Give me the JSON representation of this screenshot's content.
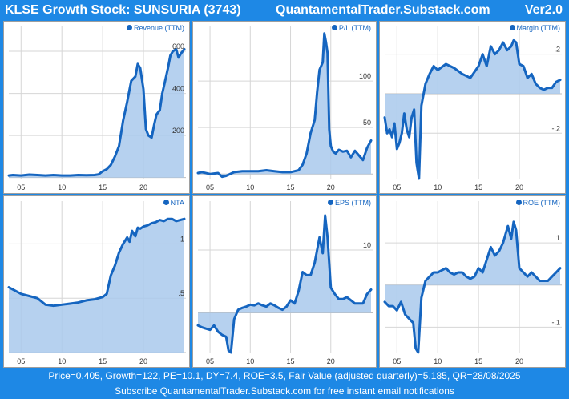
{
  "header": {
    "title": "KLSE Growth Stock: SUNSURIA (3743)",
    "site": "QuantamentalTrader.Substack.com",
    "version": "Ver2.0"
  },
  "footer": {
    "line1": "Price=0.405, Growth=122, PE=10.1, DY=7.4, ROE=3.5, Fair Value (adjusted quarterly)=5.185, QR=28/08/2025",
    "line2": "Subscribe QuantamentalTrader.Substack.com for free instant email notifications"
  },
  "colors": {
    "header_bg": "#1e88e5",
    "line": "#1565c0",
    "fill": "#a9c9ec"
  },
  "chart_data": [
    {
      "type": "area",
      "legend": "Revenue (TTM)",
      "xlim": [
        2003.5,
        2025.2
      ],
      "x_ticks": [
        "05",
        "10",
        "15",
        "20"
      ],
      "x_tick_values": [
        2005,
        2010,
        2015,
        2020
      ],
      "ylim": [
        -5,
        680
      ],
      "y_ticks": [
        200,
        400,
        600
      ],
      "y_tick_labels": [
        "200",
        "400",
        "600"
      ],
      "baseline": 0,
      "x": [
        2003.5,
        2004,
        2005,
        2006,
        2007,
        2008,
        2009,
        2010,
        2011,
        2012,
        2013,
        2014,
        2014.5,
        2015,
        2015.5,
        2016,
        2016.5,
        2017,
        2017.5,
        2018,
        2018.5,
        2019,
        2019.3,
        2019.6,
        2020,
        2020.3,
        2020.6,
        2021,
        2021.3,
        2021.6,
        2022,
        2022.3,
        2022.6,
        2023,
        2023.3,
        2023.6,
        2024,
        2024.3,
        2024.6,
        2025
      ],
      "y": [
        10,
        12,
        10,
        14,
        12,
        10,
        12,
        10,
        10,
        12,
        11,
        12,
        15,
        30,
        40,
        60,
        100,
        150,
        270,
        360,
        460,
        480,
        540,
        520,
        420,
        230,
        200,
        190,
        250,
        300,
        320,
        400,
        450,
        520,
        580,
        600,
        610,
        570,
        590,
        610
      ]
    },
    {
      "type": "area",
      "legend": "P/L (TTM)",
      "xlim": [
        2003.5,
        2025.2
      ],
      "x_ticks": [
        "05",
        "10",
        "15",
        "20"
      ],
      "x_tick_values": [
        2005,
        2010,
        2015,
        2020
      ],
      "ylim": [
        -5,
        150
      ],
      "y_ticks": [
        50,
        100
      ],
      "y_tick_labels": [
        "50",
        "100"
      ],
      "baseline": 0,
      "x": [
        2003.5,
        2004,
        2005,
        2006,
        2006.5,
        2007,
        2008,
        2009,
        2010,
        2011,
        2012,
        2013,
        2014,
        2015,
        2015.5,
        2016,
        2016.5,
        2017,
        2017.5,
        2018,
        2018.3,
        2018.6,
        2019,
        2019.2,
        2019.4,
        2019.6,
        2019.8,
        2020,
        2020.3,
        2020.6,
        2021,
        2021.5,
        2022,
        2022.5,
        2023,
        2023.5,
        2024,
        2024.5,
        2025
      ],
      "y": [
        1,
        2,
        0,
        1,
        -3,
        -2,
        2,
        3,
        3,
        3,
        4,
        3,
        2,
        2,
        3,
        4,
        10,
        22,
        44,
        58,
        88,
        112,
        120,
        151,
        142,
        130,
        48,
        30,
        24,
        22,
        26,
        24,
        25,
        18,
        25,
        20,
        15,
        28,
        36
      ]
    },
    {
      "type": "area",
      "legend": "Margin (TTM)",
      "xlim": [
        2003.5,
        2025.2
      ],
      "x_ticks": [
        "05",
        "10",
        "15",
        "20"
      ],
      "x_tick_values": [
        2005,
        2010,
        2015,
        2020
      ],
      "ylim": [
        -0.43,
        0.3
      ],
      "y_ticks": [
        -0.2,
        0.2
      ],
      "y_tick_labels": [
        "-.2",
        ".2"
      ],
      "baseline": 0,
      "x": [
        2003.5,
        2003.8,
        2004.1,
        2004.4,
        2004.7,
        2005,
        2005.3,
        2005.6,
        2005.9,
        2006.2,
        2006.5,
        2006.8,
        2007.1,
        2007.4,
        2007.7,
        2008,
        2008.5,
        2009,
        2009.5,
        2010,
        2011,
        2012,
        2013,
        2014,
        2015,
        2015.5,
        2016,
        2016.5,
        2017,
        2017.5,
        2018,
        2018.5,
        2019,
        2019.3,
        2019.6,
        2020,
        2020.5,
        2021,
        2021.5,
        2022,
        2022.5,
        2023,
        2023.5,
        2024,
        2024.5,
        2025
      ],
      "y": [
        -0.12,
        -0.2,
        -0.18,
        -0.22,
        -0.15,
        -0.28,
        -0.25,
        -0.2,
        -0.1,
        -0.18,
        -0.22,
        -0.12,
        -0.08,
        -0.35,
        -0.43,
        -0.06,
        0.05,
        0.1,
        0.14,
        0.12,
        0.15,
        0.13,
        0.1,
        0.08,
        0.14,
        0.2,
        0.14,
        0.24,
        0.2,
        0.22,
        0.26,
        0.22,
        0.24,
        0.27,
        0.26,
        0.15,
        0.14,
        0.08,
        0.1,
        0.05,
        0.03,
        0.02,
        0.03,
        0.03,
        0.06,
        0.07
      ]
    },
    {
      "type": "area",
      "legend": "NTA",
      "xlim": [
        2003.5,
        2025.2
      ],
      "x_ticks": [
        "05",
        "10",
        "15",
        "20"
      ],
      "x_tick_values": [
        2005,
        2010,
        2015,
        2020
      ],
      "ylim": [
        0,
        1.32
      ],
      "y_ticks": [
        0.5,
        1
      ],
      "y_tick_labels": [
        ".5",
        "1"
      ],
      "baseline": 0,
      "x": [
        2003.5,
        2004,
        2005,
        2006,
        2007,
        2008,
        2009,
        2010,
        2011,
        2012,
        2013,
        2014,
        2015,
        2015.5,
        2016,
        2016.5,
        2017,
        2017.5,
        2018,
        2018.3,
        2018.6,
        2019,
        2019.3,
        2019.6,
        2020,
        2020.5,
        2021,
        2021.5,
        2022,
        2022.5,
        2023,
        2023.5,
        2024,
        2024.5,
        2025
      ],
      "y": [
        0.6,
        0.58,
        0.54,
        0.52,
        0.5,
        0.44,
        0.43,
        0.44,
        0.45,
        0.46,
        0.48,
        0.49,
        0.51,
        0.54,
        0.71,
        0.8,
        0.92,
        1.0,
        1.06,
        1.02,
        1.12,
        1.07,
        1.15,
        1.14,
        1.16,
        1.17,
        1.19,
        1.2,
        1.22,
        1.21,
        1.23,
        1.23,
        1.21,
        1.22,
        1.23
      ]
    },
    {
      "type": "area",
      "legend": "EPS (TTM)",
      "xlim": [
        2003.5,
        2025.2
      ],
      "x_ticks": [
        "05",
        "10",
        "15",
        "20"
      ],
      "x_tick_values": [
        2005,
        2010,
        2015,
        2020
      ],
      "ylim": [
        -6.3,
        16.5
      ],
      "y_ticks": [
        10
      ],
      "y_tick_labels": [
        "10"
      ],
      "baseline": 0,
      "x": [
        2003.5,
        2004,
        2004.5,
        2005,
        2005.5,
        2006,
        2006.5,
        2007,
        2007.3,
        2007.6,
        2008,
        2008.5,
        2009,
        2009.5,
        2010,
        2010.5,
        2011,
        2011.5,
        2012,
        2012.5,
        2013,
        2013.5,
        2014,
        2014.5,
        2015,
        2015.5,
        2016,
        2016.5,
        2017,
        2017.5,
        2018,
        2018.3,
        2018.6,
        2019,
        2019.3,
        2019.6,
        2020,
        2020.5,
        2021,
        2021.5,
        2022,
        2022.5,
        2023,
        2023.5,
        2024,
        2024.5,
        2025
      ],
      "y": [
        -2,
        -2.3,
        -2.5,
        -2.7,
        -2,
        -3,
        -3.5,
        -3.8,
        -6,
        -6.3,
        -1,
        0.5,
        0.8,
        1,
        1.3,
        1.2,
        1.5,
        1.2,
        1,
        1.5,
        1.2,
        0.8,
        0.5,
        1,
        2,
        1.5,
        3.5,
        6.5,
        6,
        6,
        8,
        10,
        12,
        9.5,
        15.5,
        12,
        4,
        3,
        2.2,
        2.2,
        2.5,
        2,
        1.5,
        1.5,
        1.5,
        3,
        3.7
      ]
    },
    {
      "type": "area",
      "legend": "ROE (TTM)",
      "xlim": [
        2003.5,
        2025.2
      ],
      "x_ticks": [
        "05",
        "10",
        "15",
        "20"
      ],
      "x_tick_values": [
        2005,
        2010,
        2015,
        2020
      ],
      "ylim": [
        -0.16,
        0.18
      ],
      "y_ticks": [
        -0.1,
        0.1
      ],
      "y_tick_labels": [
        "-.1",
        ".1"
      ],
      "baseline": 0,
      "x": [
        2003.5,
        2004,
        2004.5,
        2005,
        2005.5,
        2006,
        2006.5,
        2007,
        2007.3,
        2007.6,
        2008,
        2008.5,
        2009,
        2009.5,
        2010,
        2010.5,
        2011,
        2011.5,
        2012,
        2012.5,
        2013,
        2013.5,
        2014,
        2014.5,
        2015,
        2015.5,
        2016,
        2016.5,
        2017,
        2017.5,
        2018,
        2018.3,
        2018.6,
        2019,
        2019.3,
        2019.6,
        2020,
        2020.5,
        2021,
        2021.5,
        2022,
        2022.5,
        2023,
        2023.5,
        2024,
        2024.5,
        2025
      ],
      "y": [
        -0.04,
        -0.05,
        -0.05,
        -0.06,
        -0.04,
        -0.07,
        -0.08,
        -0.09,
        -0.15,
        -0.16,
        -0.03,
        0.01,
        0.02,
        0.03,
        0.03,
        0.035,
        0.04,
        0.03,
        0.025,
        0.03,
        0.03,
        0.02,
        0.015,
        0.02,
        0.04,
        0.03,
        0.06,
        0.09,
        0.07,
        0.08,
        0.1,
        0.12,
        0.14,
        0.11,
        0.15,
        0.13,
        0.04,
        0.03,
        0.02,
        0.03,
        0.02,
        0.01,
        0.01,
        0.01,
        0.02,
        0.03,
        0.04
      ]
    }
  ]
}
